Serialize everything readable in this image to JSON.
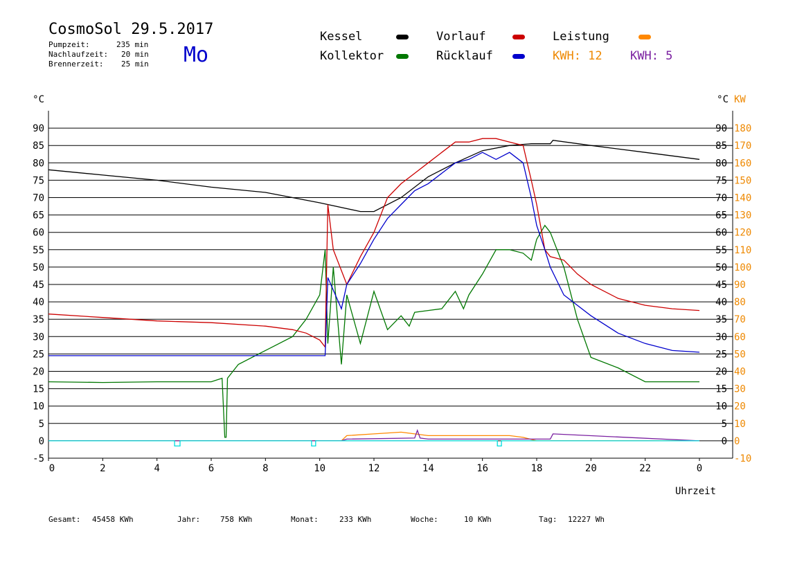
{
  "header": {
    "title": "CosmoSol 29.5.2017",
    "weekday": "Mo",
    "stats": [
      {
        "label": "Pumpzeit:",
        "value": "235 min"
      },
      {
        "label": "Nachlaufzeit:",
        "value": "20 min"
      },
      {
        "label": "Brennerzeit:",
        "value": "25 min"
      }
    ]
  },
  "legend": {
    "kessel": "Kessel",
    "kollektor": "Kollektor",
    "vorlauf": "Vorlauf",
    "ruecklauf": "Rücklauf",
    "leistung": "Leistung",
    "kwh_orange": "KWH: 12",
    "kwh_purple": "KWH: 5"
  },
  "colors": {
    "kessel": "#000000",
    "kollektor": "#007700",
    "vorlauf": "#cc0000",
    "ruecklauf": "#0000cc",
    "leistung": "#ff8800",
    "kwh_purple": "#7a1fa0",
    "pump": "#00dddd",
    "right_axis": "#ee8800"
  },
  "footer": [
    {
      "label": "Gesamt:",
      "value": "45458 KWh"
    },
    {
      "label": "Jahr:",
      "value": "758 KWh"
    },
    {
      "label": "Monat:",
      "value": "233 KWh"
    },
    {
      "label": "Woche:",
      "value": "10 KWh"
    },
    {
      "label": "Tag:",
      "value": "12227 Wh"
    }
  ],
  "chart_data": {
    "type": "line",
    "xlabel": "Uhrzeit",
    "ylabel_left": "°C",
    "ylabel_right_unit1": "°C",
    "ylabel_right_unit2": "KW",
    "xlim": [
      0,
      24
    ],
    "ylim": [
      -5,
      95
    ],
    "x_ticks": [
      "0",
      "2",
      "4",
      "6",
      "8",
      "10",
      "12",
      "14",
      "16",
      "18",
      "20",
      "22",
      "0"
    ],
    "y_ticks_left": [
      "90",
      "85",
      "80",
      "75",
      "70",
      "65",
      "60",
      "55",
      "50",
      "45",
      "40",
      "35",
      "30",
      "25",
      "20",
      "15",
      "10",
      "5",
      "0",
      "-5"
    ],
    "y_ticks_right_c": [
      "90",
      "85",
      "80",
      "75",
      "70",
      "65",
      "60",
      "55",
      "50",
      "45",
      "40",
      "35",
      "30",
      "25",
      "20",
      "15",
      "10",
      "5",
      "0"
    ],
    "y_ticks_right_kw": [
      "180",
      "170",
      "160",
      "150",
      "140",
      "130",
      "120",
      "110",
      "100",
      "90",
      "80",
      "70",
      "60",
      "50",
      "40",
      "30",
      "20",
      "10",
      "0",
      "-10"
    ],
    "grid": true,
    "series": [
      {
        "name": "Kessel",
        "x": [
          0,
          2,
          4,
          6,
          8,
          10,
          11.5,
          12,
          13,
          14,
          15,
          16,
          17,
          17.8,
          18.5,
          18.6,
          20,
          22,
          24
        ],
        "y": [
          78,
          76.5,
          75,
          73,
          71.5,
          68.5,
          66,
          66,
          70,
          76,
          80,
          83.5,
          85,
          85.5,
          85.5,
          86.5,
          85,
          83,
          81
        ]
      },
      {
        "name": "Kollektor",
        "x": [
          0,
          2,
          4,
          6,
          6.4,
          6.5,
          6.55,
          6.6,
          7,
          8,
          9,
          9.5,
          10,
          10.2,
          10.3,
          10.5,
          10.8,
          11,
          11.5,
          12,
          12.5,
          13,
          13.3,
          13.5,
          14,
          14.5,
          15,
          15.3,
          15.5,
          16,
          16.5,
          17,
          17.5,
          17.8,
          18,
          18.3,
          18.5,
          19,
          19.5,
          20,
          21,
          22,
          23,
          24
        ],
        "y": [
          17,
          16.8,
          17,
          17,
          18,
          1,
          1,
          18,
          22,
          26,
          30,
          35,
          42,
          55,
          28,
          50,
          22,
          42,
          28,
          43,
          32,
          36,
          33,
          37,
          37.5,
          38,
          43,
          38,
          42,
          48,
          55,
          55,
          54,
          52,
          58,
          62,
          60,
          50,
          35,
          24,
          21,
          17,
          17,
          17
        ]
      },
      {
        "name": "Vorlauf",
        "x": [
          0,
          2,
          4,
          6,
          8,
          9,
          9.5,
          10,
          10.2,
          10.3,
          10.5,
          11,
          11.5,
          12,
          12.5,
          13,
          13.5,
          14,
          14.5,
          15,
          15.5,
          16,
          16.5,
          17,
          17.5,
          17.8,
          18,
          18.3,
          18.5,
          19,
          19.5,
          20,
          21,
          22,
          23,
          24
        ],
        "y": [
          36.5,
          35.5,
          34.5,
          34,
          33,
          32,
          31,
          29,
          27,
          68,
          55,
          45,
          53,
          60,
          70,
          74,
          77,
          80,
          83,
          86,
          86,
          87,
          87,
          86,
          85,
          75,
          68,
          55,
          53,
          52,
          48,
          45,
          41,
          39,
          38,
          37.5
        ]
      },
      {
        "name": "Rücklauf",
        "x": [
          0,
          2,
          4,
          6,
          8,
          10,
          10.2,
          10.3,
          10.8,
          11,
          11.5,
          12,
          12.5,
          13,
          13.5,
          14,
          14.5,
          15,
          15.5,
          16,
          16.5,
          17,
          17.5,
          17.8,
          18,
          18.3,
          18.5,
          19,
          20,
          21,
          22,
          23,
          24
        ],
        "y": [
          24.5,
          24.5,
          24.5,
          24.5,
          24.5,
          24.5,
          24.5,
          47,
          38,
          45,
          51,
          58,
          64,
          68,
          72,
          74,
          77,
          80,
          81,
          83,
          81,
          83,
          80,
          70,
          62,
          55,
          50,
          42,
          36,
          31,
          28,
          26,
          25.5
        ]
      },
      {
        "name": "Leistung",
        "x": [
          0,
          10.8,
          11,
          12,
          13,
          14,
          15,
          16,
          17,
          17.5,
          18,
          24
        ],
        "y": [
          0,
          0,
          1.5,
          2,
          2.5,
          1.5,
          1.5,
          1.5,
          1.5,
          1,
          0,
          0
        ]
      },
      {
        "name": "KWH: 5",
        "x": [
          0,
          10.8,
          11,
          13.5,
          13.6,
          13.7,
          14,
          16,
          18,
          18.5,
          18.6,
          24
        ],
        "y": [
          0,
          0,
          0.5,
          0.8,
          3,
          0.8,
          0.5,
          0.5,
          0.5,
          0.5,
          2,
          0
        ]
      },
      {
        "name": "Pumpe",
        "x": [
          0,
          4.65,
          4.65,
          4.85,
          4.85,
          9.7,
          9.7,
          9.85,
          9.85,
          16.55,
          16.55,
          16.7,
          16.7,
          24
        ],
        "y": [
          0,
          0,
          -1.5,
          -1.5,
          0,
          0,
          -1.5,
          -1.5,
          0,
          0,
          -1.5,
          -1.5,
          0,
          0
        ]
      }
    ]
  }
}
